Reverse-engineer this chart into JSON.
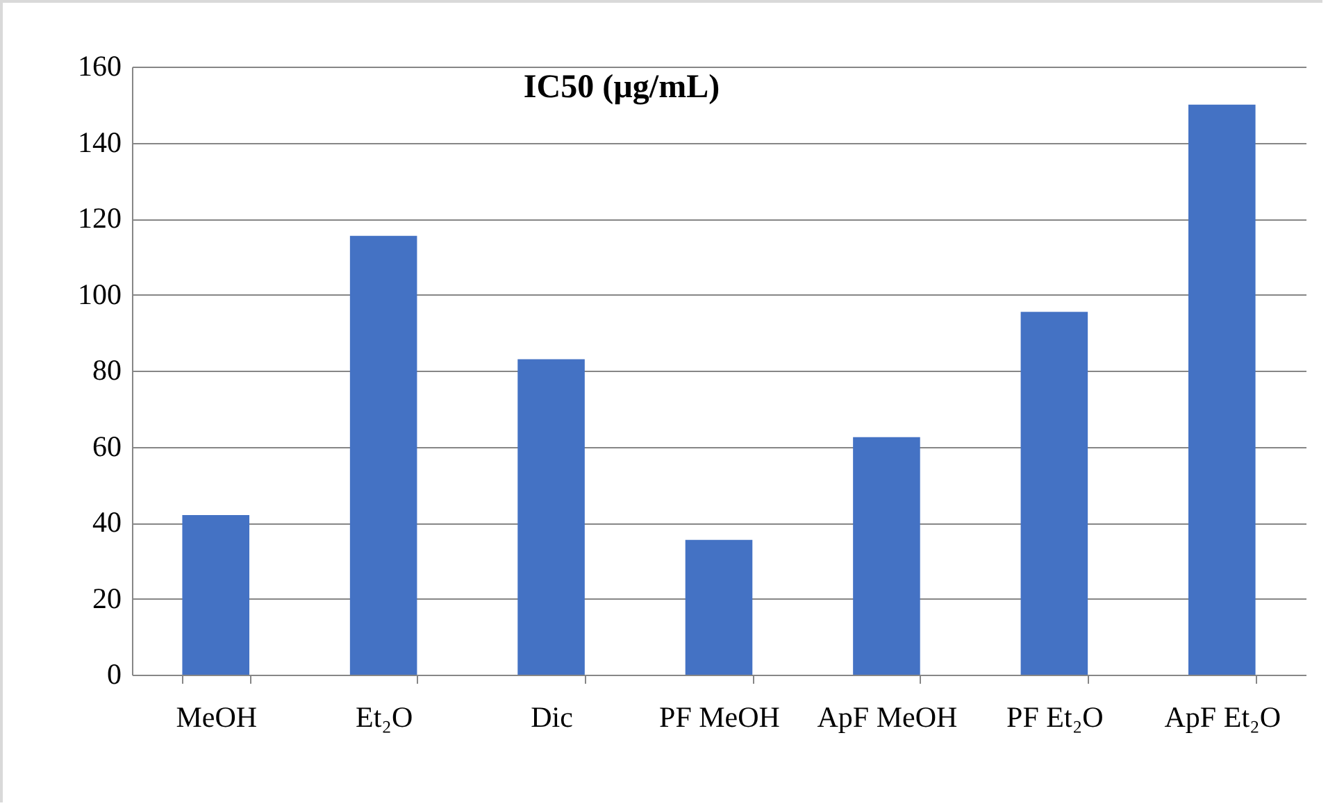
{
  "chart_data": {
    "type": "bar",
    "title": "IC50 (µg/mL)",
    "categories": [
      "MeOH",
      "Et₂O",
      "Dic",
      "PF MeOH",
      "ApF MeOH",
      "PF Et₂O",
      "ApF Et₂O"
    ],
    "values": [
      42,
      115.5,
      83,
      35.5,
      62.5,
      95.5,
      150
    ],
    "color": "#4472c4",
    "ylim": [
      0,
      160
    ],
    "yticks": [
      0,
      20,
      40,
      60,
      80,
      100,
      120,
      140,
      160
    ],
    "grid": "y"
  }
}
